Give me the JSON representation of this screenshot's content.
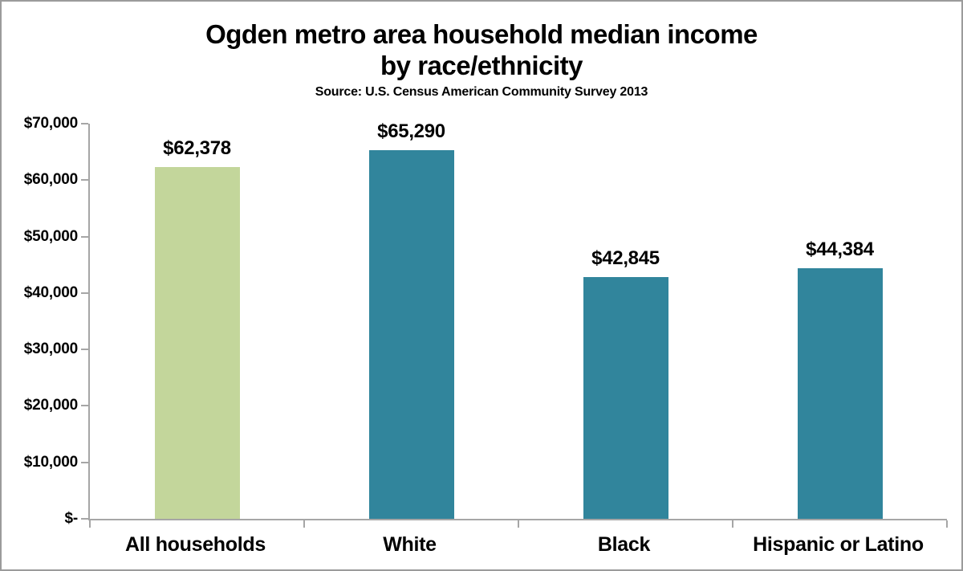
{
  "chart_data": {
    "type": "bar",
    "title_line1": "Ogden metro area household median income",
    "title_line2": "by race/ethnicity",
    "subtitle": "Source: U.S. Census American Community Survey 2013",
    "categories": [
      "All households",
      "White",
      "Black",
      "Hispanic or Latino"
    ],
    "values": [
      62378,
      65290,
      42845,
      44384
    ],
    "value_labels": [
      "$62,378",
      "$65,290",
      "$42,845",
      "$44,384"
    ],
    "bar_colors": [
      "#c3d69b",
      "#31859c",
      "#31859c",
      "#31859c"
    ],
    "ylim": [
      0,
      70000
    ],
    "ytick_values": [
      0,
      10000,
      20000,
      30000,
      40000,
      50000,
      60000,
      70000
    ],
    "ytick_labels": [
      "$-",
      "$10,000",
      "$20,000",
      "$30,000",
      "$40,000",
      "$50,000",
      "$60,000",
      "$70,000"
    ],
    "xlabel": "",
    "ylabel": "",
    "grid": false,
    "legend": "none"
  },
  "colors": {
    "bar_green": "#c3d69b",
    "bar_teal": "#31859c",
    "axis": "#a6a6a6",
    "text": "#000000",
    "background": "#ffffff",
    "frame_border": "#9b9b9b"
  }
}
